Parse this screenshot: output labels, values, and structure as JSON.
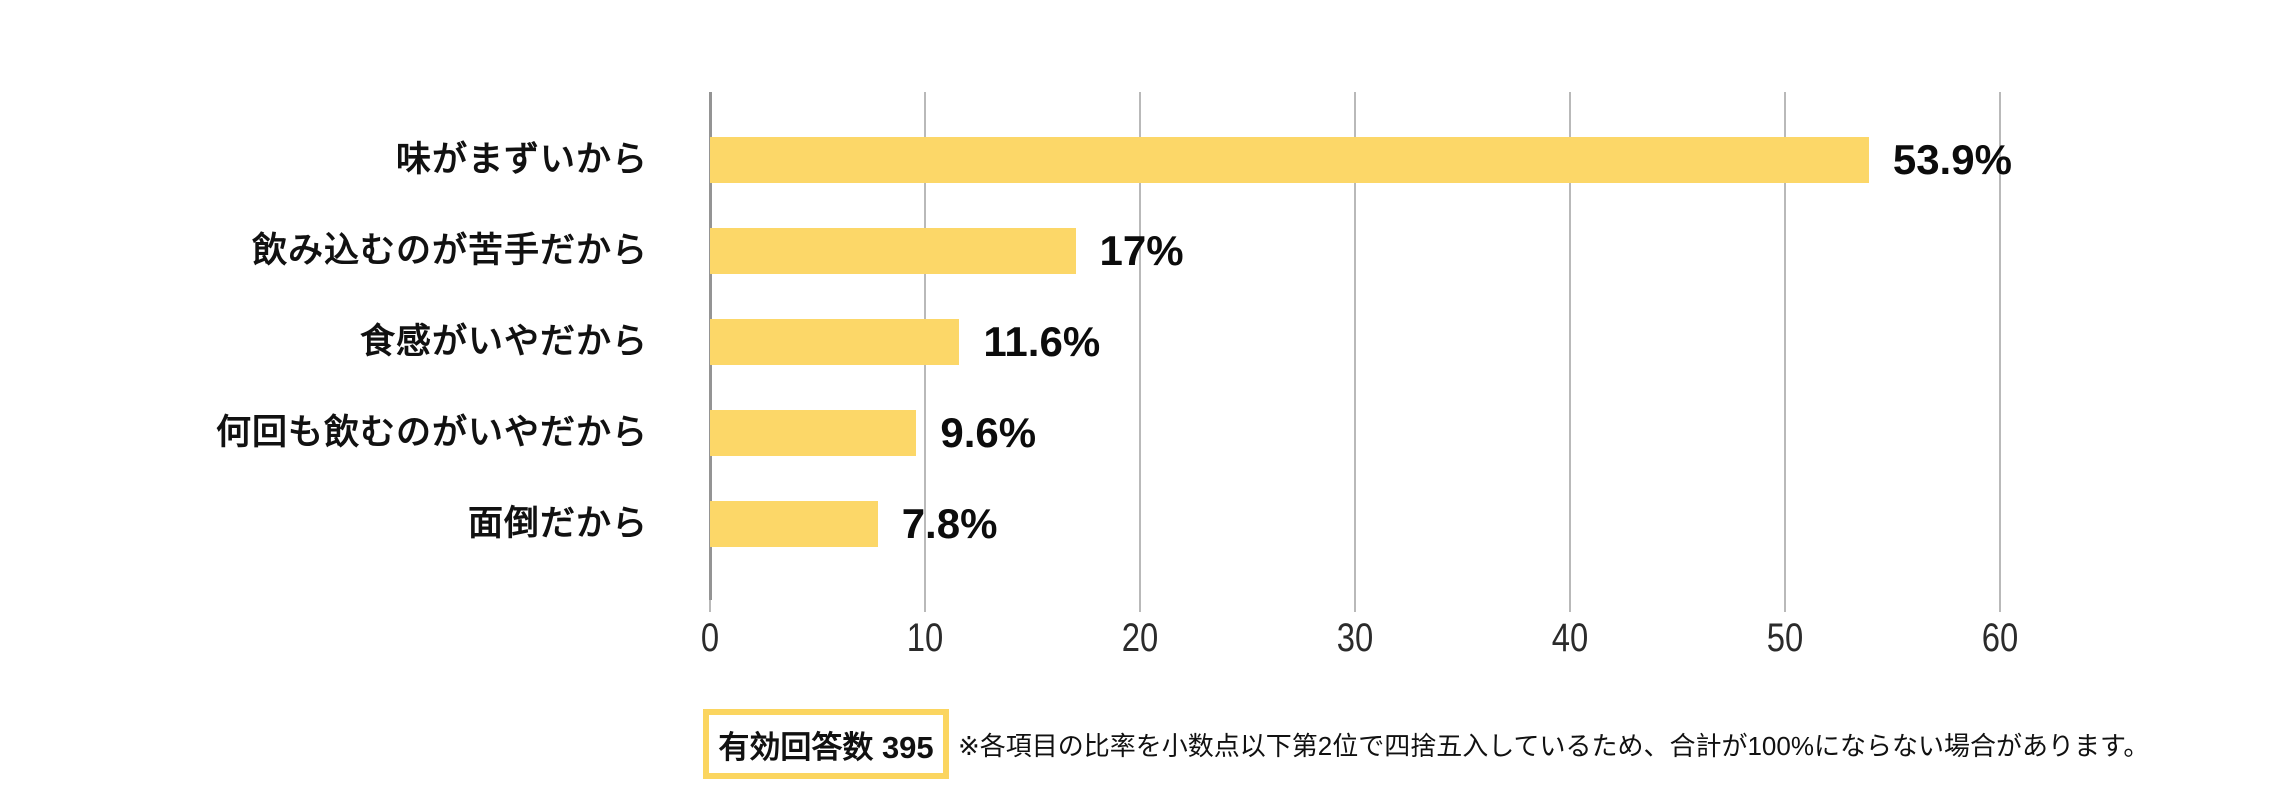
{
  "chart_data": {
    "type": "bar",
    "orientation": "horizontal",
    "title": "",
    "categories": [
      "味がまずいから",
      "飲み込むのが苦手だから",
      "食感がいやだから",
      "何回も飲むのがいやだから",
      "面倒だから"
    ],
    "values": [
      53.9,
      17,
      11.6,
      9.6,
      7.8
    ],
    "value_labels": [
      "53.9%",
      "17%",
      "11.6%",
      "9.6%",
      "7.8%"
    ],
    "x_ticks": [
      "0",
      "10",
      "20",
      "30",
      "40",
      "50",
      "60"
    ],
    "xlim": [
      0,
      60
    ],
    "grid": true,
    "legend": false,
    "xlabel": "",
    "ylabel": "",
    "bar_color": "#FCD768",
    "grid_color": "#b9b9b9",
    "zero_axis_color": "#949494"
  },
  "footer": {
    "valid_responses": "有効回答数 395",
    "note": "※各項目の比率を小数点以下第2位で四捨五入しているため、合計が100%にならない場合があります。"
  }
}
